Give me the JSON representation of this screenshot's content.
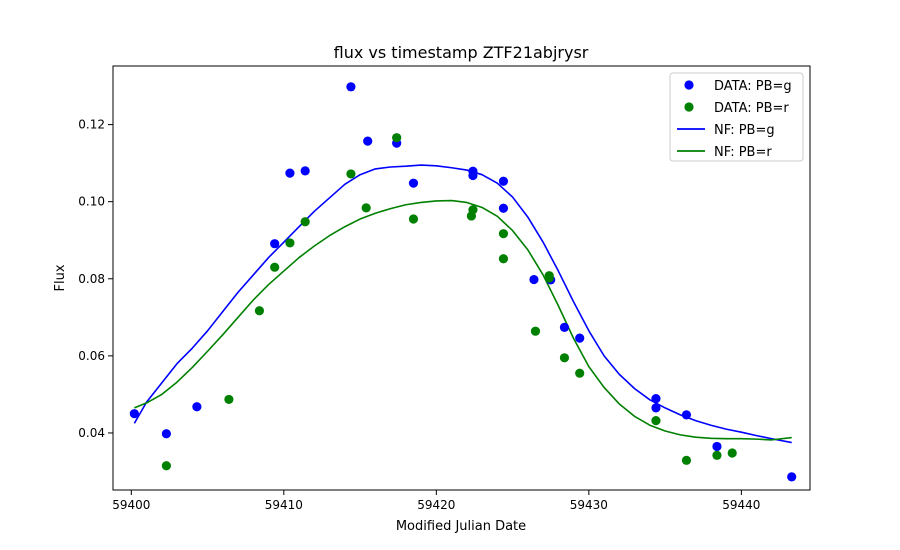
{
  "chart_data": {
    "type": "scatter",
    "title": "flux vs timestamp ZTF21abjrysr",
    "xlabel": "Modified Julian Date",
    "ylabel": "Flux",
    "xlim": [
      59398.8,
      59444.5
    ],
    "ylim": [
      0.0252,
      0.1352
    ],
    "xticks": [
      59400,
      59410,
      59420,
      59430,
      59440
    ],
    "yticks": [
      0.04,
      0.06,
      0.08,
      0.1,
      0.12
    ],
    "ytick_labels": [
      "0.04",
      "0.06",
      "0.08",
      "0.10",
      "0.12"
    ],
    "grid": false,
    "legend_position": "top-right",
    "colors": {
      "g": "#0000ff",
      "r": "#008000"
    },
    "series": [
      {
        "name": "DATA: PB=g",
        "kind": "scatter",
        "color": "#0000ff",
        "x": [
          59400.2,
          59402.3,
          59404.3,
          59409.4,
          59410.4,
          59411.4,
          59414.4,
          59415.5,
          59417.4,
          59418.5,
          59422.4,
          59422.4,
          59424.4,
          59424.4,
          59426.4,
          59427.5,
          59428.4,
          59429.4,
          59434.4,
          59434.4,
          59436.4,
          59438.4,
          59443.3
        ],
        "y": [
          0.045,
          0.0398,
          0.0468,
          0.0891,
          0.1074,
          0.108,
          0.1298,
          0.1157,
          0.1152,
          0.1048,
          0.1079,
          0.1068,
          0.1053,
          0.0983,
          0.0798,
          0.0797,
          0.0674,
          0.0646,
          0.0489,
          0.0465,
          0.0447,
          0.0365,
          0.0286
        ]
      },
      {
        "name": "DATA: PB=r",
        "kind": "scatter",
        "color": "#008000",
        "x": [
          59402.3,
          59406.4,
          59408.4,
          59409.4,
          59410.4,
          59411.4,
          59414.4,
          59415.4,
          59417.4,
          59418.5,
          59422.3,
          59422.4,
          59424.4,
          59424.4,
          59426.5,
          59427.4,
          59427.4,
          59428.4,
          59429.4,
          59434.4,
          59436.4,
          59438.4,
          59439.4
        ],
        "y": [
          0.0315,
          0.0487,
          0.0717,
          0.083,
          0.0893,
          0.0948,
          0.1072,
          0.0984,
          0.1166,
          0.0955,
          0.0963,
          0.0979,
          0.0917,
          0.0852,
          0.0664,
          0.0808,
          0.0802,
          0.0595,
          0.0555,
          0.0432,
          0.0329,
          0.0342,
          0.0348
        ]
      },
      {
        "name": "NF: PB=g",
        "kind": "line",
        "color": "#0000ff",
        "x": [
          59400.2,
          59401,
          59402,
          59403,
          59404,
          59405,
          59406,
          59407,
          59408,
          59409,
          59410,
          59411,
          59412,
          59413,
          59414,
          59415,
          59416,
          59417,
          59418,
          59419,
          59420,
          59421,
          59422,
          59423,
          59424,
          59425,
          59426,
          59427,
          59428,
          59429,
          59430,
          59431,
          59432,
          59433,
          59434,
          59435,
          59436,
          59437,
          59438,
          59439,
          59440,
          59441,
          59442,
          59443.3
        ],
        "y": [
          0.0425,
          0.048,
          0.053,
          0.058,
          0.062,
          0.0665,
          0.0715,
          0.0765,
          0.081,
          0.0855,
          0.0895,
          0.0935,
          0.0975,
          0.101,
          0.1045,
          0.107,
          0.1085,
          0.109,
          0.1092,
          0.1095,
          0.1093,
          0.1088,
          0.1082,
          0.107,
          0.1048,
          0.1012,
          0.096,
          0.0895,
          0.082,
          0.074,
          0.0665,
          0.06,
          0.0552,
          0.0515,
          0.0486,
          0.0465,
          0.0447,
          0.0432,
          0.042,
          0.041,
          0.0402,
          0.0393,
          0.0385,
          0.0375
        ]
      },
      {
        "name": "NF: PB=r",
        "kind": "line",
        "color": "#008000",
        "x": [
          59400.2,
          59401,
          59402,
          59403,
          59404,
          59405,
          59406,
          59407,
          59408,
          59409,
          59410,
          59411,
          59412,
          59413,
          59414,
          59415,
          59416,
          59417,
          59418,
          59419,
          59420,
          59421,
          59422,
          59423,
          59424,
          59425,
          59426,
          59427,
          59428,
          59429,
          59430,
          59431,
          59432,
          59433,
          59434,
          59435,
          59436,
          59437,
          59438,
          59439,
          59440,
          59441,
          59442,
          59443.3
        ],
        "y": [
          0.0465,
          0.0478,
          0.05,
          0.0532,
          0.057,
          0.0612,
          0.0655,
          0.07,
          0.0745,
          0.0785,
          0.082,
          0.0855,
          0.0885,
          0.0912,
          0.0935,
          0.0955,
          0.097,
          0.0982,
          0.0992,
          0.0998,
          0.1002,
          0.1003,
          0.0998,
          0.0985,
          0.0962,
          0.0925,
          0.0875,
          0.081,
          0.073,
          0.0645,
          0.0572,
          0.0518,
          0.0475,
          0.0443,
          0.042,
          0.0405,
          0.0395,
          0.0389,
          0.0386,
          0.0385,
          0.0385,
          0.0384,
          0.0382,
          0.0388
        ]
      }
    ]
  }
}
